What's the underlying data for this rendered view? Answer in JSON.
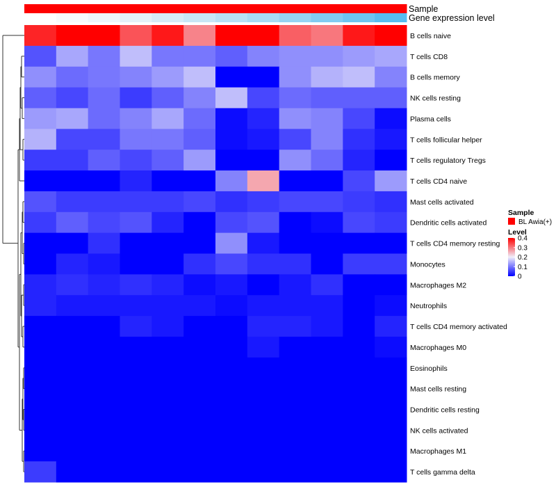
{
  "chart_data": {
    "type": "heatmap",
    "title": "",
    "column_annotations": [
      {
        "name": "Sample",
        "colors": [
          "#ff0000",
          "#ff0000",
          "#ff0000",
          "#ff0000",
          "#ff0000",
          "#ff0000",
          "#ff0000",
          "#ff0000",
          "#ff0000",
          "#ff0000",
          "#ff0000",
          "#ff0000"
        ]
      },
      {
        "name": "Gene expression level",
        "colors": [
          "#ffffff",
          "#f7fbfd",
          "#eef6fb",
          "#e4f2f9",
          "#d6ecf7",
          "#c8e7f6",
          "#b8e1f5",
          "#a8dbf4",
          "#96d4f3",
          "#82ccf2",
          "#6ec5f1",
          "#58bdf0"
        ]
      }
    ],
    "rows": [
      "B cells naive",
      "T cells CD8",
      "B cells memory",
      "NK cells resting",
      "Plasma cells",
      "T cells follicular helper",
      "T cells regulatory  Tregs",
      "T cells CD4 naive",
      "Mast cells activated",
      "Dendritic cells activated",
      "T cells CD4 memory resting",
      "Monocytes",
      "Macrophages M2",
      "Neutrophils",
      "T cells CD4 memory activated",
      "Macrophages M0",
      "Eosinophils",
      "Mast cells resting",
      "Dendritic cells resting",
      "NK cells activated",
      "Macrophages M1",
      "T cells gamma delta"
    ],
    "values": [
      [
        0.37,
        0.42,
        0.43,
        0.33,
        0.38,
        0.29,
        0.43,
        0.41,
        0.32,
        0.3,
        0.38,
        0.42
      ],
      [
        0.07,
        0.14,
        0.1,
        0.16,
        0.1,
        0.1,
        0.08,
        0.11,
        0.12,
        0.12,
        0.13,
        0.14
      ],
      [
        0.12,
        0.09,
        0.1,
        0.11,
        0.13,
        0.16,
        0.0,
        0.0,
        0.12,
        0.15,
        0.16,
        0.11
      ],
      [
        0.08,
        0.06,
        0.09,
        0.05,
        0.08,
        0.11,
        0.16,
        0.06,
        0.09,
        0.08,
        0.08,
        0.08
      ],
      [
        0.13,
        0.14,
        0.09,
        0.11,
        0.14,
        0.09,
        0.01,
        0.03,
        0.12,
        0.11,
        0.06,
        0.01
      ],
      [
        0.15,
        0.06,
        0.06,
        0.1,
        0.1,
        0.08,
        0.01,
        0.02,
        0.06,
        0.11,
        0.04,
        0.02
      ],
      [
        0.05,
        0.05,
        0.08,
        0.06,
        0.08,
        0.13,
        0.0,
        0.0,
        0.12,
        0.09,
        0.03,
        0.0
      ],
      [
        0.0,
        0.0,
        0.0,
        0.03,
        0.0,
        0.0,
        0.11,
        0.26,
        0.0,
        0.0,
        0.06,
        0.13
      ],
      [
        0.07,
        0.05,
        0.05,
        0.05,
        0.05,
        0.06,
        0.04,
        0.05,
        0.06,
        0.06,
        0.05,
        0.04
      ],
      [
        0.05,
        0.08,
        0.06,
        0.07,
        0.03,
        0.0,
        0.06,
        0.07,
        0.0,
        0.01,
        0.06,
        0.05
      ],
      [
        0.0,
        0.0,
        0.04,
        0.0,
        0.0,
        0.0,
        0.12,
        0.02,
        0.0,
        0.0,
        0.0,
        0.0
      ],
      [
        0.0,
        0.03,
        0.02,
        0.0,
        0.0,
        0.04,
        0.06,
        0.04,
        0.04,
        0.0,
        0.05,
        0.05
      ],
      [
        0.03,
        0.04,
        0.03,
        0.04,
        0.03,
        0.01,
        0.02,
        0.0,
        0.02,
        0.04,
        0.0,
        0.0
      ],
      [
        0.03,
        0.02,
        0.02,
        0.02,
        0.02,
        0.02,
        0.01,
        0.02,
        0.02,
        0.02,
        0.0,
        0.01
      ],
      [
        0.0,
        0.0,
        0.0,
        0.03,
        0.02,
        0.0,
        0.0,
        0.03,
        0.03,
        0.02,
        0.0,
        0.03
      ],
      [
        0.0,
        0.0,
        0.0,
        0.0,
        0.0,
        0.0,
        0.0,
        0.02,
        0.0,
        0.0,
        0.0,
        0.01
      ],
      [
        0.0,
        0.0,
        0.0,
        0.0,
        0.0,
        0.0,
        0.0,
        0.0,
        0.0,
        0.0,
        0.0,
        0.0
      ],
      [
        0.0,
        0.0,
        0.0,
        0.0,
        0.0,
        0.0,
        0.0,
        0.0,
        0.0,
        0.0,
        0.0,
        0.0
      ],
      [
        0.0,
        0.0,
        0.0,
        0.0,
        0.0,
        0.0,
        0.0,
        0.0,
        0.0,
        0.0,
        0.0,
        0.0
      ],
      [
        0.0,
        0.0,
        0.0,
        0.0,
        0.0,
        0.0,
        0.0,
        0.0,
        0.0,
        0.0,
        0.0,
        0.0
      ],
      [
        0.0,
        0.0,
        0.0,
        0.0,
        0.0,
        0.0,
        0.0,
        0.0,
        0.0,
        0.0,
        0.0,
        0.0
      ],
      [
        0.05,
        0.0,
        0.0,
        0.0,
        0.0,
        0.0,
        0.0,
        0.0,
        0.0,
        0.0,
        0.0,
        0.0
      ]
    ],
    "color_scale": {
      "domain": [
        0,
        0.2,
        0.4
      ],
      "colors": [
        "#0000ff",
        "#f0eefa",
        "#ff0000"
      ],
      "ticks": [
        0.4,
        0.3,
        0.2,
        0.1,
        0
      ]
    },
    "legend": {
      "placement": "right",
      "sample_title": "Sample",
      "sample_entry": "BL Awia(+)",
      "sample_color": "#ff0000",
      "level_title": "Level"
    },
    "row_dendrogram": true
  }
}
